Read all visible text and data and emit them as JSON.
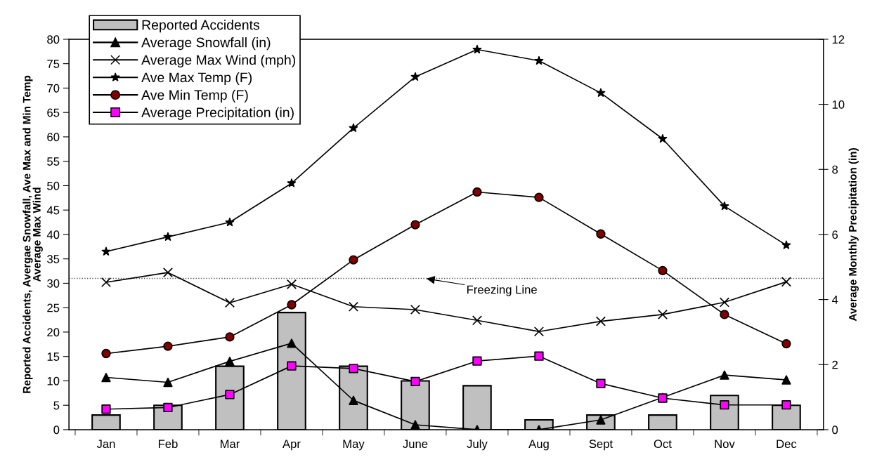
{
  "chart_data": {
    "type": "bar",
    "categories": [
      "Jan",
      "Feb",
      "Mar",
      "Apr",
      "May",
      "June",
      "July",
      "Aug",
      "Sept",
      "Oct",
      "Nov",
      "Dec"
    ],
    "ylabel": "Reported Accidents, Avergae Snowfall, Ave Max and Min Temp\nAverage Max Wind",
    "y2label": "Average Monthly Precipitation (in)",
    "ylim": [
      0,
      80
    ],
    "yticks": [
      0,
      5,
      10,
      15,
      20,
      25,
      30,
      35,
      40,
      45,
      50,
      55,
      60,
      65,
      70,
      75,
      80
    ],
    "y2lim": [
      0,
      12
    ],
    "y2ticks": [
      0,
      2,
      4,
      6,
      8,
      10,
      12
    ],
    "grid": false,
    "legend": "top left",
    "series": [
      {
        "name": "Reported Accidents",
        "color": "#c0c0c0",
        "values": [
          3,
          5,
          13,
          24,
          13,
          10,
          9,
          2,
          3,
          3,
          7,
          5
        ]
      },
      {
        "name": "Average Snowfall (in)",
        "type": "line",
        "marker": "triangle",
        "color": "#000000",
        "values": [
          10.7,
          9.7,
          14,
          17.7,
          6,
          1,
          0,
          0,
          2,
          6.6,
          11.2,
          10.2
        ]
      },
      {
        "name": "Average Max Wind (mph)",
        "type": "line",
        "marker": "cross",
        "color": "#000000",
        "values": [
          30.2,
          32.2,
          26,
          29.8,
          25.2,
          24.6,
          22.4,
          20.1,
          22.2,
          23.6,
          26.1,
          30.3
        ]
      },
      {
        "name": "Ave Max Temp (F)",
        "type": "line",
        "marker": "star",
        "color": "#000000",
        "values": [
          36.5,
          39.5,
          42.5,
          50.5,
          61.8,
          72.3,
          77.9,
          75.6,
          69,
          59.6,
          45.8,
          37.8
        ]
      },
      {
        "name": "Ave Min Temp (F)",
        "type": "line",
        "marker": "circle",
        "color": "#800000",
        "values": [
          15.6,
          17.1,
          19,
          25.6,
          34.8,
          42,
          48.7,
          47.6,
          40.1,
          32.6,
          23.6,
          17.6
        ]
      },
      {
        "name": "Average Precipitation (in)",
        "type": "line",
        "marker": "square",
        "color": "#ff00ff",
        "axis": "y2",
        "values": [
          0.63,
          0.68,
          1.08,
          1.96,
          1.88,
          1.48,
          2.11,
          2.26,
          1.42,
          0.97,
          0.76,
          0.76
        ]
      }
    ],
    "ref_lines": [
      {
        "axis": "y",
        "value": 31,
        "label": "Freezing Line",
        "line_style": "dotted",
        "color": "#555555"
      }
    ]
  }
}
